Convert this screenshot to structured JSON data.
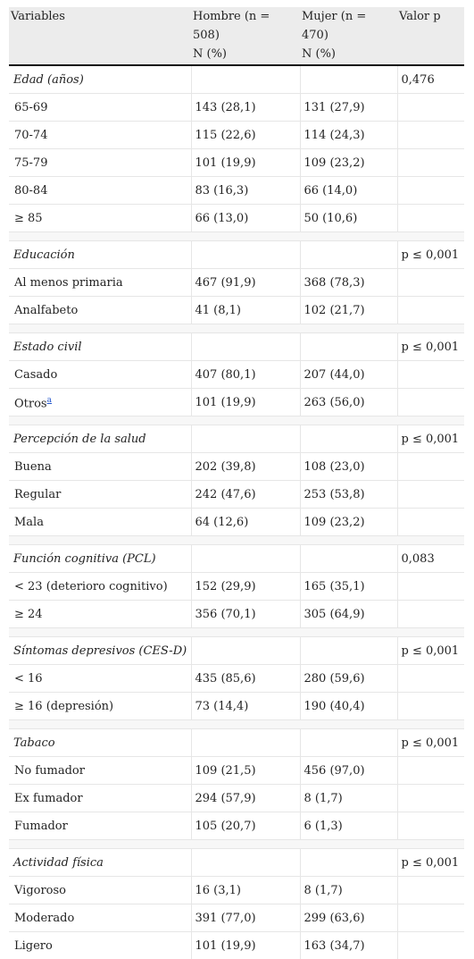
{
  "header": {
    "variables": "Variables",
    "men": "Hombre (n = 508)",
    "men_unit": "N (%)",
    "women": "Mujer (n = 470)",
    "women_unit": "N (%)",
    "pvalue": "Valor p"
  },
  "rows": {
    "edad": {
      "label": "Edad (años)",
      "p": "0,476"
    },
    "r65": {
      "label": "65-69",
      "m": "143 (28,1)",
      "w": "131 (27,9)"
    },
    "r70": {
      "label": "70-74",
      "m": "115 (22,6)",
      "w": "114 (24,3)"
    },
    "r75": {
      "label": "75-79",
      "m": "101 (19,9)",
      "w": "109 (23,2)"
    },
    "r80": {
      "label": "80-84",
      "m": "83 (16,3)",
      "w": "66 (14,0)"
    },
    "r85": {
      "label": "≥ 85",
      "m": "66 (13,0)",
      "w": "50 (10,6)"
    },
    "educ": {
      "label": "Educación",
      "p": "p ≤ 0,001"
    },
    "prim": {
      "label": "Al menos primaria",
      "m": "467 (91,9)",
      "w": "368 (78,3)"
    },
    "anal": {
      "label": "Analfabeto",
      "m": "41 (8,1)",
      "w": "102 (21,7)"
    },
    "civil": {
      "label": "Estado civil",
      "p": "p ≤ 0,001"
    },
    "casado": {
      "label": "Casado",
      "m": "407 (80,1)",
      "w": "207 (44,0)"
    },
    "otros": {
      "label": "Otros",
      "note": "a",
      "m": "101 (19,9)",
      "w": "263 (56,0)"
    },
    "perc": {
      "label": "Percepción de la salud",
      "p": "p ≤ 0,001"
    },
    "buena": {
      "label": "Buena",
      "m": "202 (39,8)",
      "w": "108 (23,0)"
    },
    "regular": {
      "label": "Regular",
      "m": "242 (47,6)",
      "w": "253 (53,8)"
    },
    "mala": {
      "label": "Mala",
      "m": "64 (12,6)",
      "w": "109 (23,2)"
    },
    "cog": {
      "label": "Función cognitiva (PCL)",
      "p": "0,083"
    },
    "cog1": {
      "label": "< 23 (deterioro cognitivo)",
      "m": "152 (29,9)",
      "w": "165 (35,1)"
    },
    "cog2": {
      "label": "≥ 24",
      "m": "356 (70,1)",
      "w": "305 (64,9)"
    },
    "dep": {
      "label": "Síntomas depresivos (CES-D)",
      "p": "p ≤ 0,001"
    },
    "dep1": {
      "label": "< 16",
      "m": "435 (85,6)",
      "w": "280 (59,6)"
    },
    "dep2": {
      "label": "≥ 16 (depresión)",
      "m": "73 (14,4)",
      "w": "190 (40,4)"
    },
    "tab": {
      "label": "Tabaco",
      "p": "p ≤ 0,001"
    },
    "nofum": {
      "label": "No fumador",
      "m": "109 (21,5)",
      "w": "456 (97,0)"
    },
    "exfum": {
      "label": "Ex fumador",
      "m": "294 (57,9)",
      "w": "8 (1,7)"
    },
    "fum": {
      "label": "Fumador",
      "m": "105 (20,7)",
      "w": "6 (1,3)"
    },
    "act": {
      "label": "Actividad física",
      "p": "p ≤ 0,001"
    },
    "vig": {
      "label": "Vigoroso",
      "m": "16 (3,1)",
      "w": "8 (1,7)"
    },
    "mod": {
      "label": "Moderado",
      "m": "391 (77,0)",
      "w": "299 (63,6)"
    },
    "lig": {
      "label": "Ligero",
      "m": "101 (19,9)",
      "w": "163 (34,7)"
    }
  }
}
